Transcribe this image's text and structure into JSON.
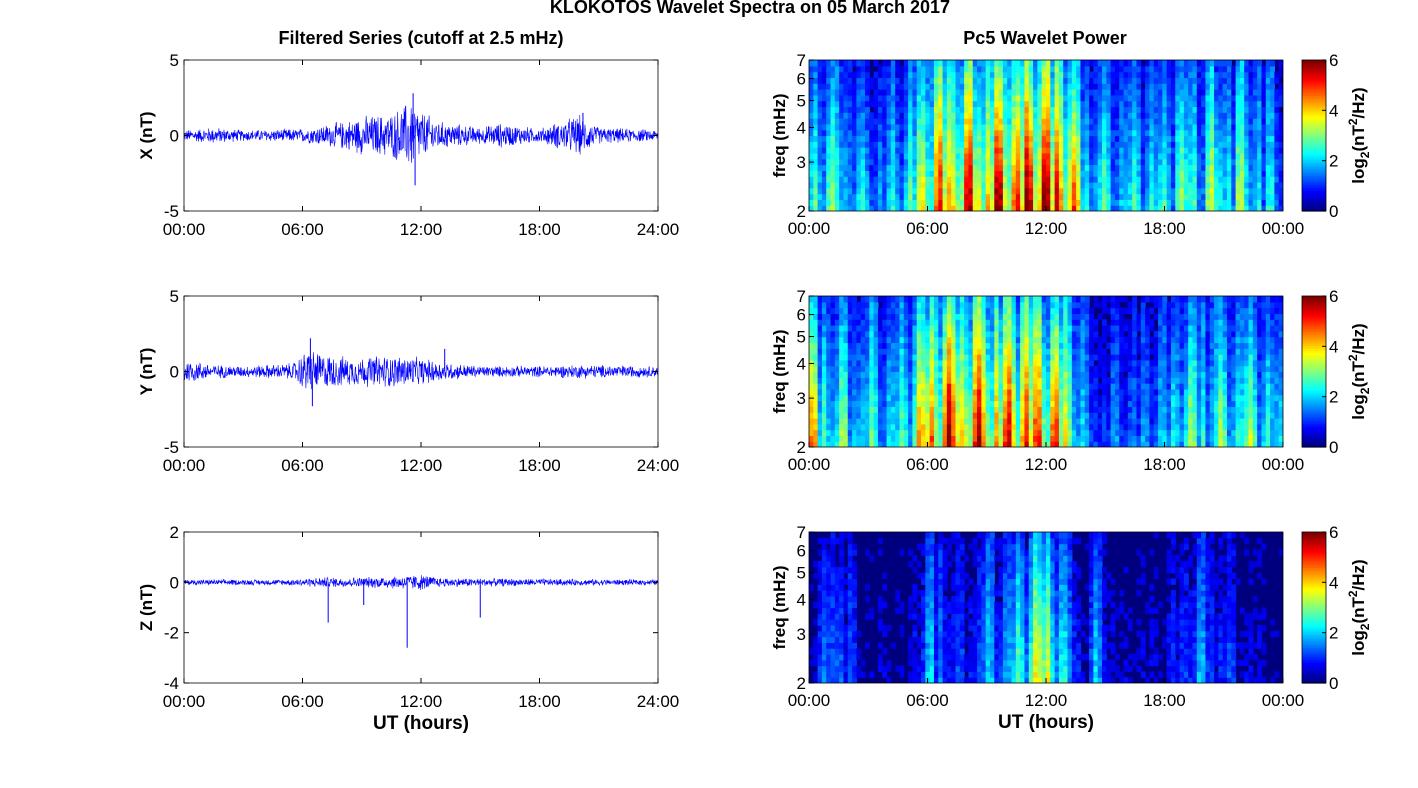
{
  "figure_title": "KLOKOTOS Wavelet Spectra on 05 March 2017",
  "left_column_title": "Filtered Series (cutoff at 2.5 mHz)",
  "right_column_title": "Pc5 Wavelet Power",
  "colors": {
    "trace": "#0000ff",
    "background": "#00007f"
  },
  "chart_data": [
    {
      "type": "line",
      "ylabel": "X (nT)",
      "xlabel": "",
      "ylim": [
        -5,
        5
      ],
      "yticks": [
        "5",
        "0",
        "-5"
      ],
      "xticks": [
        "00:00",
        "06:00",
        "12:00",
        "18:00",
        "24:00"
      ],
      "x_range_hours": [
        0,
        24
      ],
      "envelope": [
        [
          0,
          0.4
        ],
        [
          1.5,
          0.6
        ],
        [
          3,
          0.4
        ],
        [
          6,
          0.5
        ],
        [
          8,
          1
        ],
        [
          9,
          1.4
        ],
        [
          10.5,
          1.6
        ],
        [
          11.5,
          2.6
        ],
        [
          12,
          1.8
        ],
        [
          13,
          1
        ],
        [
          15,
          0.6
        ],
        [
          16,
          0.9
        ],
        [
          18,
          0.5
        ],
        [
          20,
          1.5
        ],
        [
          21,
          0.6
        ],
        [
          24,
          0.4
        ]
      ],
      "spikes": [
        {
          "x": 11.6,
          "y": 2.8
        },
        {
          "x": 11.7,
          "y": -3.3
        },
        {
          "x": 20.2,
          "y": 1.5
        }
      ]
    },
    {
      "type": "line",
      "ylabel": "Y (nT)",
      "xlabel": "",
      "ylim": [
        -5,
        5
      ],
      "yticks": [
        "5",
        "0",
        "-5"
      ],
      "xticks": [
        "00:00",
        "06:00",
        "12:00",
        "18:00",
        "24:00"
      ],
      "x_range_hours": [
        0,
        24
      ],
      "envelope": [
        [
          0,
          0.9
        ],
        [
          1.5,
          0.5
        ],
        [
          3,
          0.4
        ],
        [
          5.5,
          0.6
        ],
        [
          6.3,
          1.7
        ],
        [
          7,
          1.3
        ],
        [
          8.5,
          1
        ],
        [
          10,
          1.2
        ],
        [
          11.5,
          1.1
        ],
        [
          13,
          0.7
        ],
        [
          15,
          0.4
        ],
        [
          18,
          0.4
        ],
        [
          20,
          0.5
        ],
        [
          24,
          0.4
        ]
      ],
      "spikes": [
        {
          "x": 6.4,
          "y": 2.2
        },
        {
          "x": 6.5,
          "y": -2.3
        },
        {
          "x": 13.2,
          "y": 1.5
        }
      ]
    },
    {
      "type": "line",
      "ylabel": "Z (nT)",
      "xlabel": "UT (hours)",
      "ylim": [
        -4,
        2
      ],
      "yticks": [
        "2",
        "0",
        "-2",
        "-4"
      ],
      "xticks": [
        "00:00",
        "06:00",
        "12:00",
        "18:00",
        "24:00"
      ],
      "x_range_hours": [
        0,
        24
      ],
      "envelope": [
        [
          0,
          0.12
        ],
        [
          5,
          0.12
        ],
        [
          7,
          0.22
        ],
        [
          9,
          0.22
        ],
        [
          11,
          0.3
        ],
        [
          12,
          0.35
        ],
        [
          13,
          0.2
        ],
        [
          18,
          0.15
        ],
        [
          24,
          0.12
        ]
      ],
      "spikes": [
        {
          "x": 7.3,
          "y": -1.6
        },
        {
          "x": 11.3,
          "y": -2.6
        },
        {
          "x": 15,
          "y": -1.4
        },
        {
          "x": 9.1,
          "y": -0.9
        }
      ]
    },
    {
      "type": "heatmap",
      "ylabel": "freq (mHz)",
      "xlabel": "",
      "ylim": [
        2,
        7
      ],
      "y_scale": "log",
      "yticks": [
        "7",
        "6",
        "5",
        "4",
        "3",
        "2"
      ],
      "xticks": [
        "00:00",
        "06:00",
        "12:00",
        "18:00",
        "00:00"
      ],
      "colorbar": {
        "label": "log2(nT²/Hz)",
        "ticks": [
          "6",
          "4",
          "2",
          "0"
        ],
        "range": [
          0,
          6
        ]
      },
      "activity": [
        [
          0,
          3
        ],
        [
          1,
          3
        ],
        [
          2,
          2.4
        ],
        [
          3,
          2
        ],
        [
          4,
          2
        ],
        [
          5,
          2.6
        ],
        [
          6,
          4.5
        ],
        [
          7,
          5
        ],
        [
          8,
          5
        ],
        [
          9,
          5.2
        ],
        [
          10,
          5.5
        ],
        [
          11,
          5.8
        ],
        [
          12,
          6
        ],
        [
          13,
          5.4
        ],
        [
          14,
          3
        ],
        [
          15,
          2.4
        ],
        [
          16,
          2.4
        ],
        [
          17,
          2.4
        ],
        [
          18,
          2.6
        ],
        [
          19,
          3
        ],
        [
          20,
          3
        ],
        [
          21,
          3.2
        ],
        [
          22,
          3
        ],
        [
          23,
          2.4
        ],
        [
          24,
          2
        ]
      ]
    },
    {
      "type": "heatmap",
      "ylabel": "freq (mHz)",
      "xlabel": "",
      "ylim": [
        2,
        7
      ],
      "y_scale": "log",
      "yticks": [
        "7",
        "6",
        "5",
        "4",
        "3",
        "2"
      ],
      "xticks": [
        "00:00",
        "06:00",
        "12:00",
        "18:00",
        "00:00"
      ],
      "colorbar": {
        "label": "log2(nT²/Hz)",
        "ticks": [
          "6",
          "4",
          "2",
          "0"
        ],
        "range": [
          0,
          6
        ]
      },
      "activity": [
        [
          0,
          4.4
        ],
        [
          1,
          3
        ],
        [
          2,
          2.8
        ],
        [
          3,
          2.6
        ],
        [
          4,
          2.4
        ],
        [
          5,
          2.8
        ],
        [
          6,
          5
        ],
        [
          7,
          5.3
        ],
        [
          8,
          5.2
        ],
        [
          9,
          5.1
        ],
        [
          10,
          5
        ],
        [
          11,
          5.2
        ],
        [
          12,
          5
        ],
        [
          13,
          4.4
        ],
        [
          14,
          1.6
        ],
        [
          15,
          1.4
        ],
        [
          16,
          1.6
        ],
        [
          17,
          1.6
        ],
        [
          18,
          2
        ],
        [
          19,
          3
        ],
        [
          20,
          3
        ],
        [
          21,
          2.8
        ],
        [
          22,
          3.2
        ],
        [
          23,
          2.8
        ],
        [
          24,
          2
        ]
      ]
    },
    {
      "type": "heatmap",
      "ylabel": "freq (mHz)",
      "xlabel": "UT (hours)",
      "ylim": [
        2,
        7
      ],
      "y_scale": "log",
      "yticks": [
        "7",
        "6",
        "5",
        "4",
        "3",
        "2"
      ],
      "xticks": [
        "00:00",
        "06:00",
        "12:00",
        "18:00",
        "00:00"
      ],
      "colorbar": {
        "label": "log2(nT²/Hz)",
        "ticks": [
          "6",
          "4",
          "2",
          "0"
        ],
        "range": [
          0,
          6
        ]
      },
      "activity": [
        [
          0,
          0.5
        ],
        [
          1.5,
          2
        ],
        [
          2.5,
          0.6
        ],
        [
          5,
          0.4
        ],
        [
          6.3,
          2.2
        ],
        [
          7,
          1.2
        ],
        [
          8,
          1
        ],
        [
          9,
          1.8
        ],
        [
          10,
          2
        ],
        [
          11,
          3
        ],
        [
          11.8,
          4.2
        ],
        [
          12.5,
          3.2
        ],
        [
          13,
          2
        ],
        [
          14,
          0.6
        ],
        [
          14.6,
          2
        ],
        [
          15.5,
          0.5
        ],
        [
          18,
          0.6
        ],
        [
          19,
          1.2
        ],
        [
          19.6,
          1.8
        ],
        [
          20.5,
          1.4
        ],
        [
          21.5,
          1
        ],
        [
          23,
          0.5
        ],
        [
          24,
          0.3
        ]
      ]
    }
  ]
}
